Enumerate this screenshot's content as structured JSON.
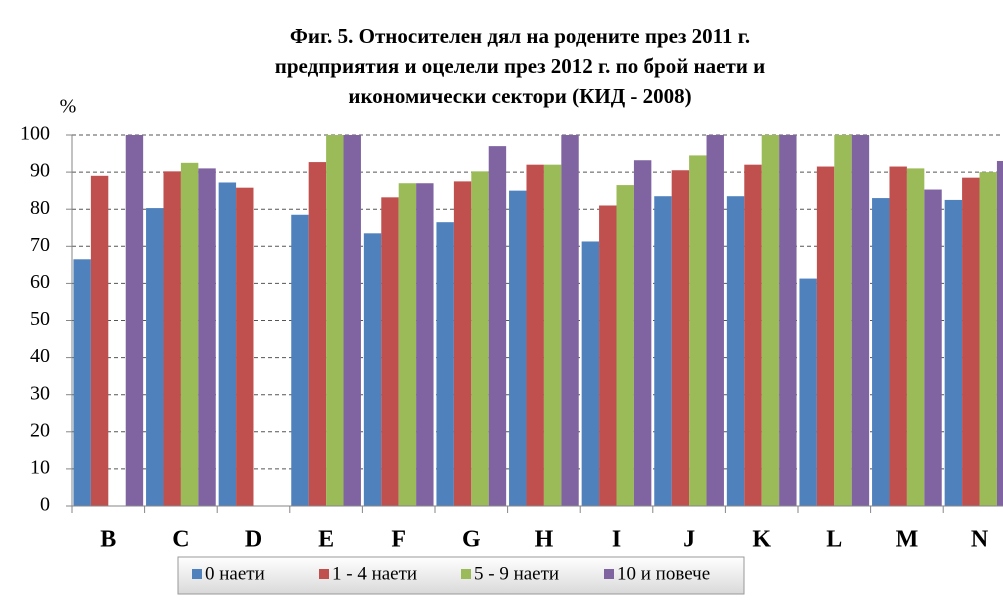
{
  "chart_data": {
    "type": "bar",
    "title": [
      "Фиг. 5. Относителен дял на родените през 2011 г.",
      "предприятия и оцелели през 2012 г. по брой наети и",
      "икономически сектори (КИД - 2008)"
    ],
    "ylabel": "%",
    "categories": [
      "B",
      "C",
      "D",
      "E",
      "F",
      "G",
      "H",
      "I",
      "J",
      "K",
      "L",
      "M",
      "N"
    ],
    "series": [
      {
        "name": "0 наети",
        "color": "#4f81bd",
        "values": [
          66.5,
          80.3,
          87.2,
          78.5,
          73.5,
          76.5,
          85,
          71.3,
          83.5,
          83.5,
          61.3,
          83,
          82.5
        ]
      },
      {
        "name": "1 - 4 наети",
        "color": "#c0504d",
        "values": [
          89,
          90.2,
          85.8,
          92.7,
          83.2,
          87.5,
          92,
          81,
          90.5,
          92,
          91.5,
          91.5,
          88.5
        ]
      },
      {
        "name": "5 - 9 наети",
        "color": "#9bbb59",
        "values": [
          null,
          92.5,
          null,
          100,
          87,
          90.2,
          92,
          86.5,
          94.5,
          100,
          100,
          91,
          90
        ]
      },
      {
        "name": "10 и повече",
        "color": "#8064a2",
        "values": [
          100,
          91,
          null,
          100,
          87,
          97,
          100,
          93.2,
          100,
          100,
          100,
          85.3,
          93
        ]
      }
    ],
    "ylim": [
      0,
      100
    ],
    "yticks": [
      0,
      10,
      20,
      30,
      40,
      50,
      60,
      70,
      80,
      90,
      100
    ],
    "grid": true,
    "legend": "bottom"
  }
}
